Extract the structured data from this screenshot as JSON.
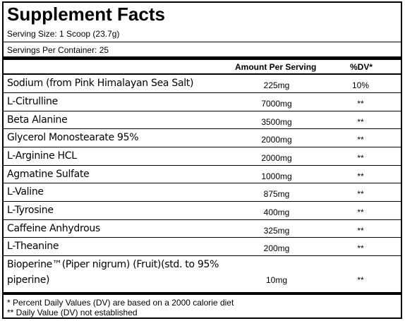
{
  "title": "Supplement Facts",
  "serving_size": "Serving Size: 1 Scoop (23.7g)",
  "servings_per_container": "Servings Per Container: 25",
  "headers": {
    "amount": "Amount Per Serving",
    "dv": "%DV*"
  },
  "rows": [
    {
      "name": "Sodium (from Pink Himalayan Sea Salt)",
      "amount": "225mg",
      "dv": "10%"
    },
    {
      "name": "L-Citrulline",
      "amount": "7000mg",
      "dv": "**"
    },
    {
      "name": "Beta Alanine",
      "amount": "3500mg",
      "dv": "**"
    },
    {
      "name": "Glycerol Monostearate 95%",
      "amount": "2000mg",
      "dv": "**"
    },
    {
      "name": "L-Arginine HCL",
      "amount": "2000mg",
      "dv": "**"
    },
    {
      "name": "Agmatine Sulfate",
      "amount": "1000mg",
      "dv": "**"
    },
    {
      "name": "L-Valine",
      "amount": "875mg",
      "dv": "**"
    },
    {
      "name": "L-Tyrosine",
      "amount": "400mg",
      "dv": "**"
    },
    {
      "name": "Caffeine Anhydrous",
      "amount": "325mg",
      "dv": "**"
    },
    {
      "name": "L-Theanine",
      "amount": "200mg",
      "dv": "**"
    },
    {
      "name": "Bioperine™(Piper nigrum) (Fruit)(std. to 95% piperine)",
      "amount": "10mg",
      "dv": "**"
    }
  ],
  "footnotes": [
    "* Percent Daily Values (DV) are based on a 2000 calorie diet",
    "** Daily Value (DV) not established"
  ]
}
